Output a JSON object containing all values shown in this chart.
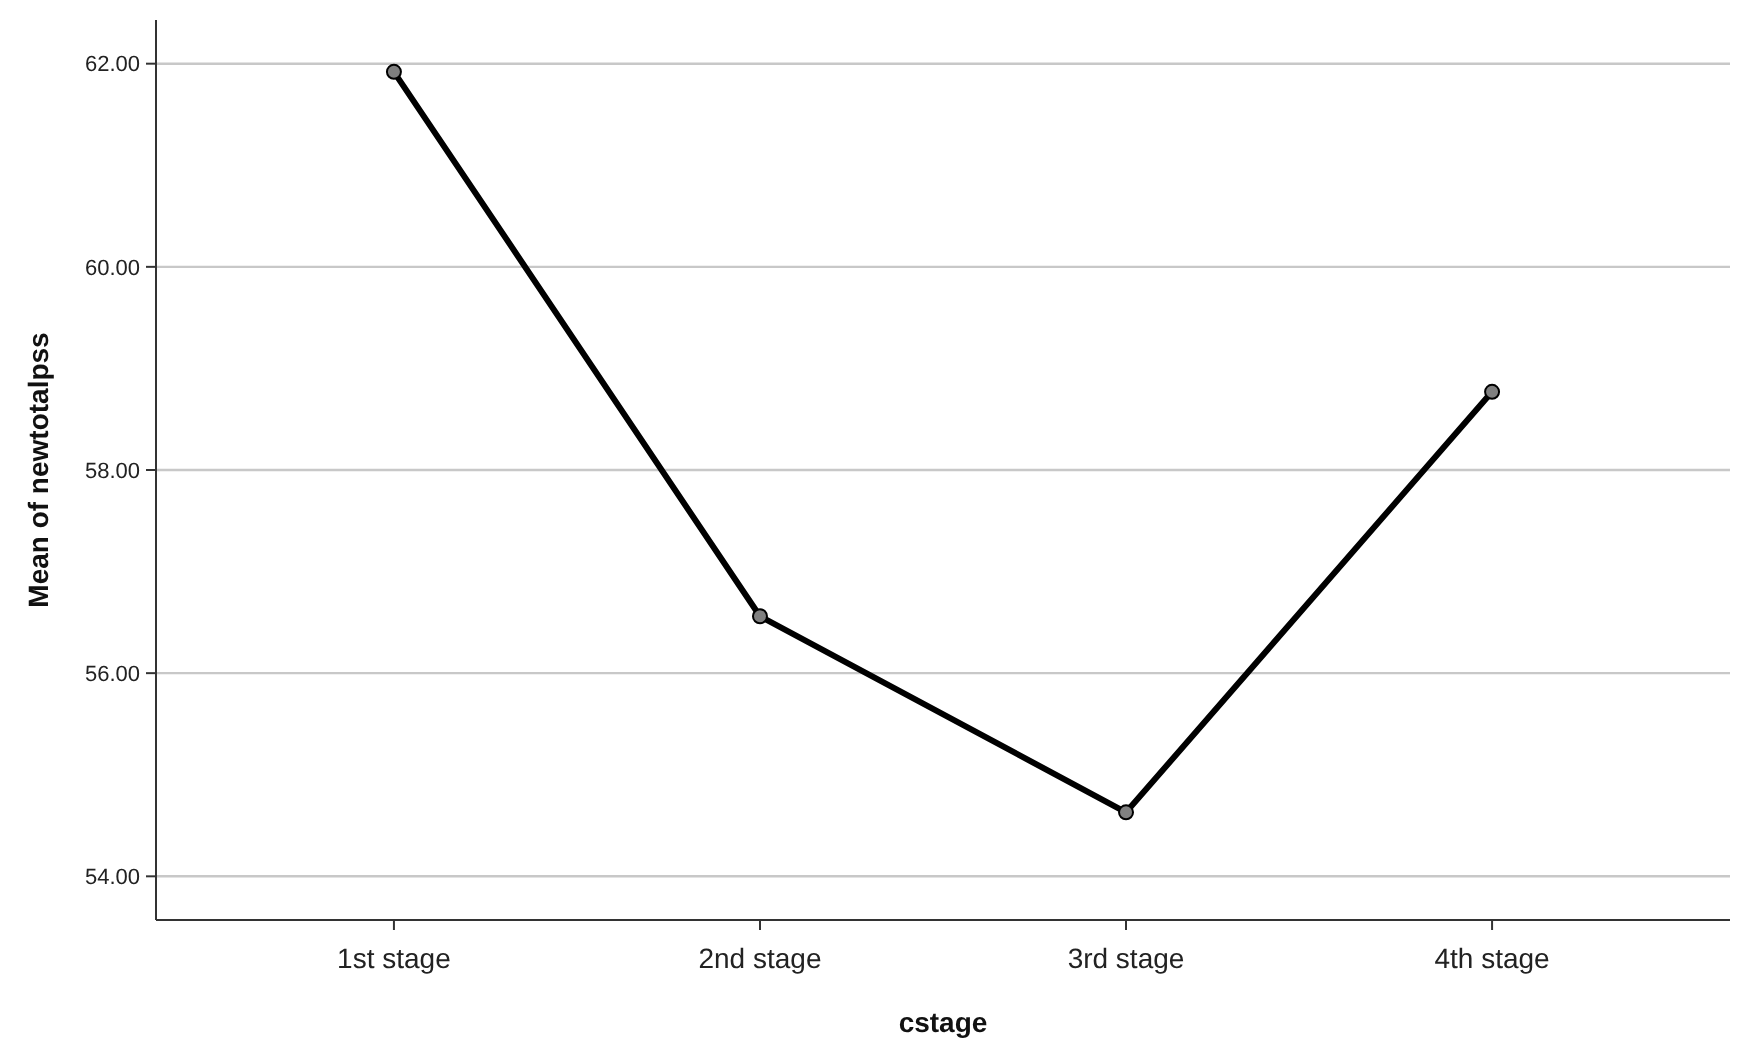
{
  "chart_data": {
    "type": "line",
    "xlabel": "cstage",
    "ylabel": "Mean of newtotalpss",
    "categories": [
      "1st stage",
      "2nd stage",
      "3rd stage",
      "4th stage"
    ],
    "series": [
      {
        "color": "#000000",
        "values": [
          61.92,
          56.56,
          54.63,
          58.77
        ]
      }
    ],
    "ylim": [
      53.57,
      62.43
    ],
    "yticks": [
      {
        "value": 54,
        "label": "54.00"
      },
      {
        "value": 56,
        "label": "56.00"
      },
      {
        "value": 58,
        "label": "58.00"
      },
      {
        "value": 60,
        "label": "60.00"
      },
      {
        "value": 62,
        "label": "62.00"
      }
    ],
    "grid": "y",
    "marker": "circle",
    "line_style": "solid"
  }
}
